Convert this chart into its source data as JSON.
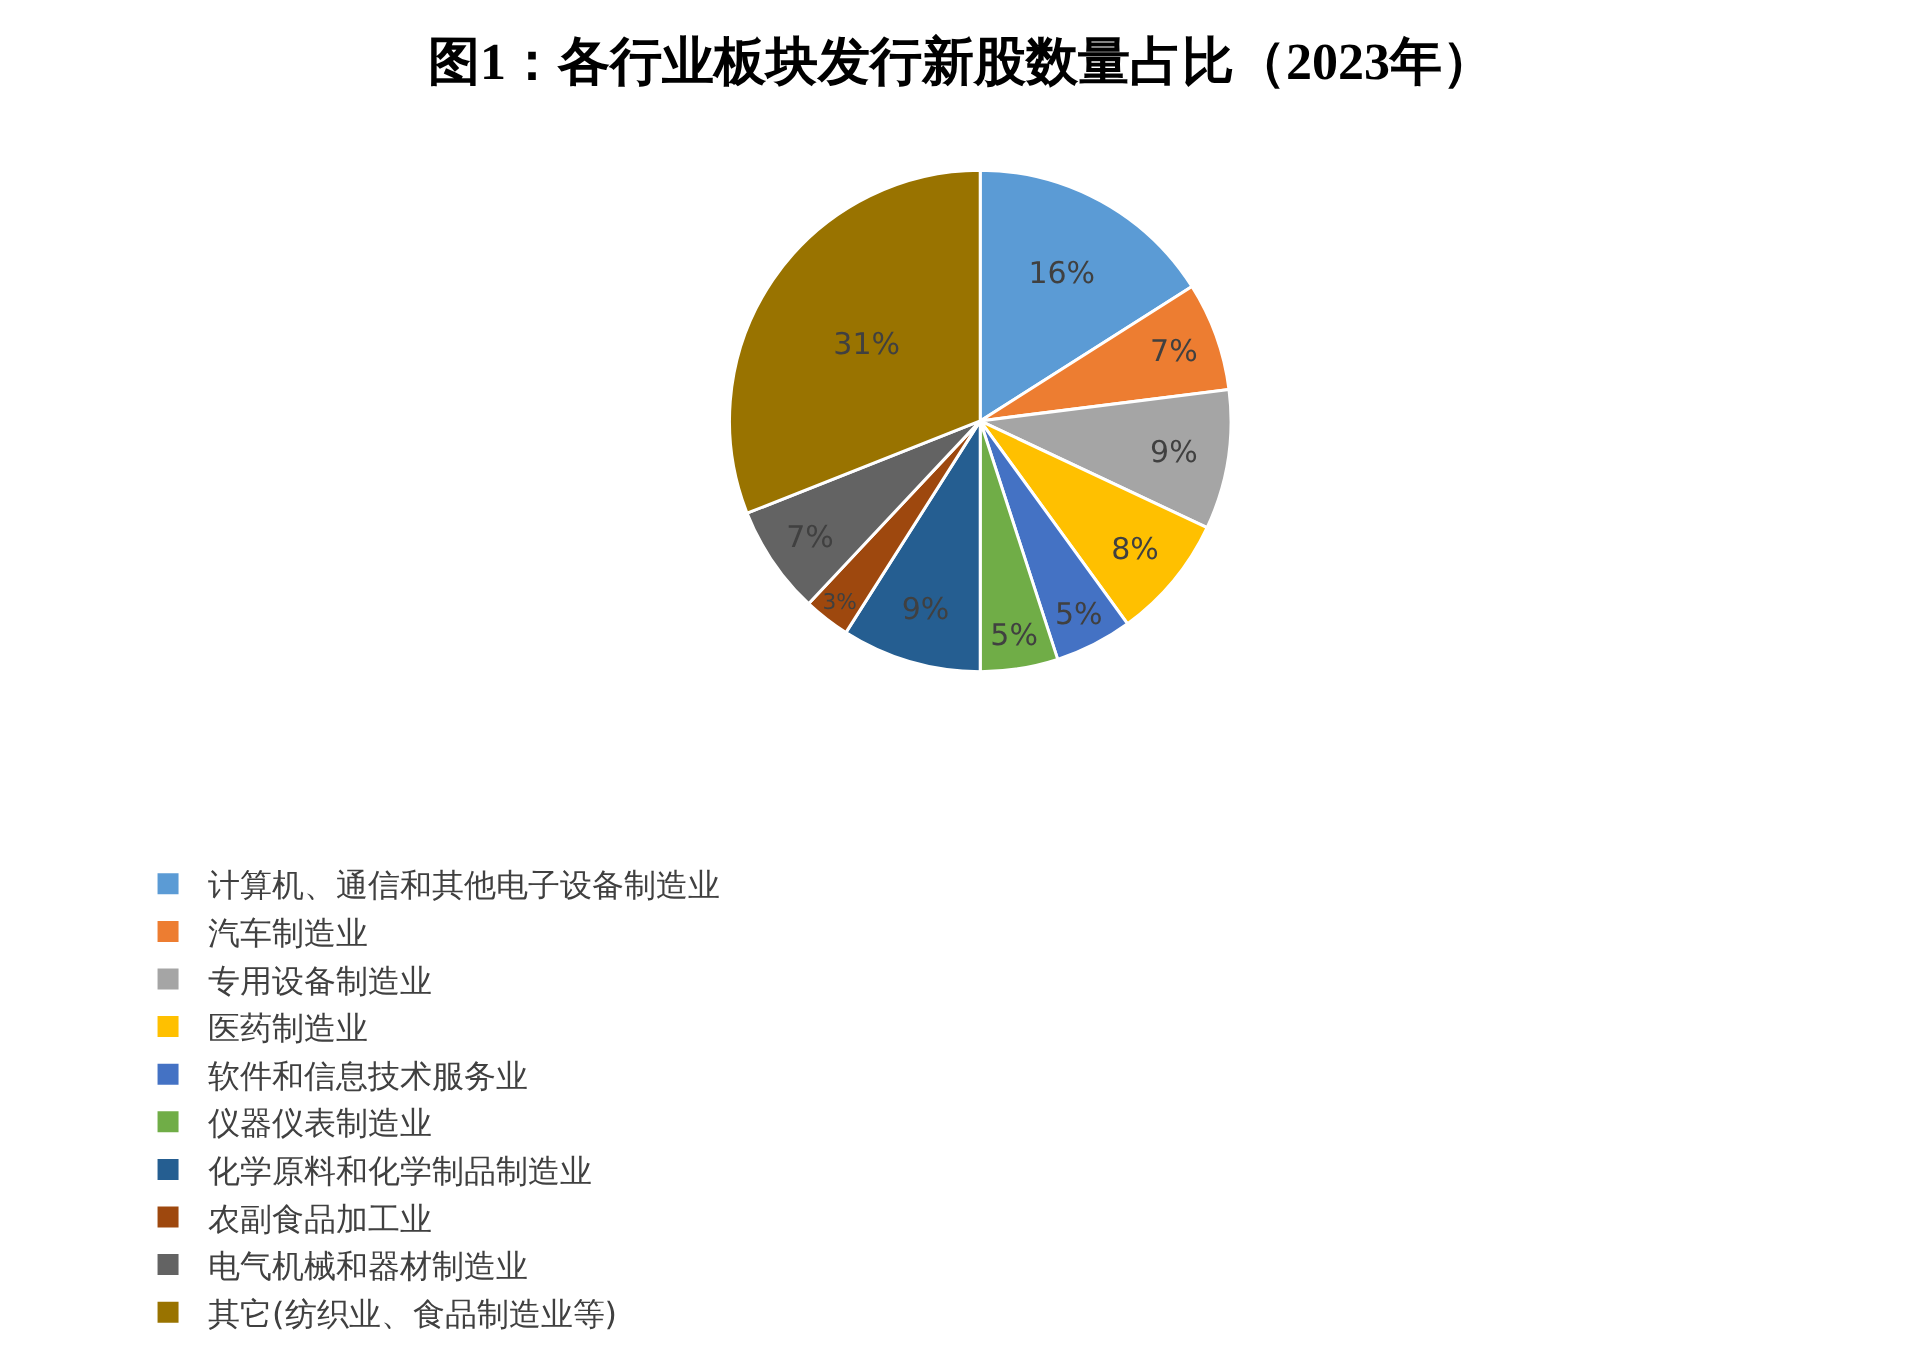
{
  "chart_data": {
    "type": "pie",
    "title": "图1：各行业板块发行新股数量占比（2023年）",
    "categories": [
      "计算机、通信和其他电子设备制造业",
      "汽车制造业",
      "专用设备制造业",
      "医药制造业",
      "软件和信息技术服务业",
      "仪器仪表制造业",
      "化学原料和化学制品制造业",
      "农副食品加工业",
      "电气机械和器材制造业",
      "其它(纺织业、食品制造业等)"
    ],
    "values": [
      16,
      7,
      9,
      8,
      5,
      5,
      9,
      3,
      7,
      31
    ],
    "value_labels": [
      "16%",
      "7%",
      "9%",
      "8%",
      "5%",
      "5%",
      "9%",
      "3%",
      "7%",
      "31%"
    ],
    "colors": [
      "#5b9bd5",
      "#ed7d31",
      "#a5a5a5",
      "#ffc000",
      "#4472c4",
      "#70ad47",
      "#255e91",
      "#9e480e",
      "#636363",
      "#997300"
    ],
    "legend": "bottom"
  }
}
